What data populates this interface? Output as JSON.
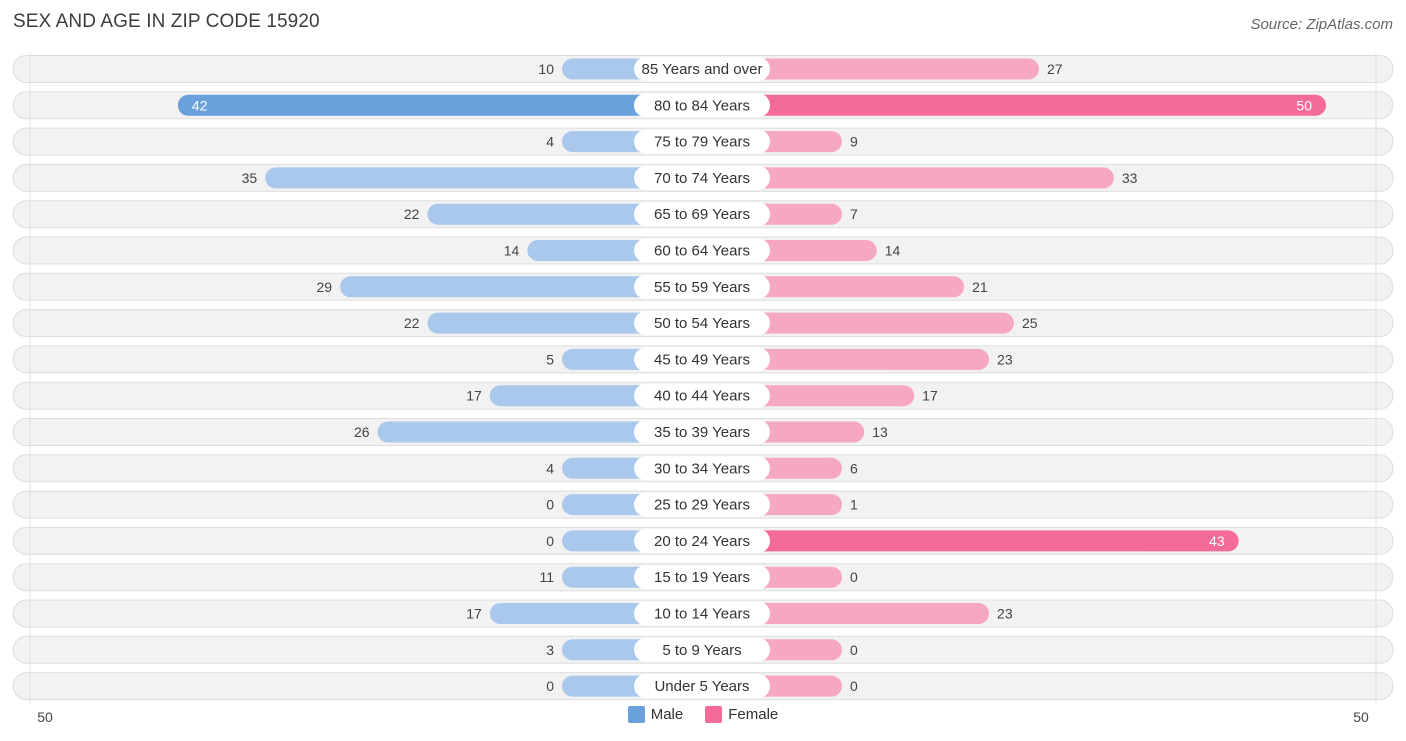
{
  "chart_data": {
    "type": "bar",
    "orientation": "horizontal-diverging",
    "title": "SEX AND AGE IN ZIP CODE 15920",
    "source": "Source: ZipAtlas.com",
    "categories": [
      "85 Years and over",
      "80 to 84 Years",
      "75 to 79 Years",
      "70 to 74 Years",
      "65 to 69 Years",
      "60 to 64 Years",
      "55 to 59 Years",
      "50 to 54 Years",
      "45 to 49 Years",
      "40 to 44 Years",
      "35 to 39 Years",
      "30 to 34 Years",
      "25 to 29 Years",
      "20 to 24 Years",
      "15 to 19 Years",
      "10 to 14 Years",
      "5 to 9 Years",
      "Under 5 Years"
    ],
    "series": [
      {
        "name": "Male",
        "color": "#6aa0dc",
        "light_color": "#a9c8ec",
        "values": [
          10,
          42,
          4,
          35,
          22,
          14,
          29,
          22,
          5,
          17,
          26,
          4,
          0,
          0,
          11,
          17,
          3,
          0
        ]
      },
      {
        "name": "Female",
        "color": "#f46b97",
        "light_color": "#f7a8c1",
        "values": [
          27,
          50,
          9,
          33,
          7,
          14,
          21,
          25,
          23,
          17,
          13,
          6,
          1,
          43,
          0,
          23,
          0,
          0
        ]
      }
    ],
    "axis": {
      "left_label": "50",
      "right_label": "50",
      "max": 50
    },
    "legend": [
      "Male",
      "Female"
    ],
    "legend_position": "bottom-center"
  }
}
